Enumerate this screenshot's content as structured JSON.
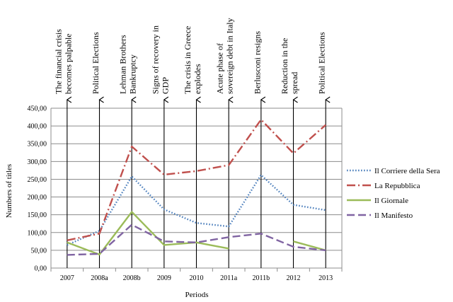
{
  "chart_data": {
    "type": "line",
    "title": "",
    "xlabel": "Periods",
    "ylabel": "Numbers of titles",
    "ylim": [
      0,
      450
    ],
    "ytick_step": 50,
    "ytick_labels": [
      "0,00",
      "50,00",
      "100,00",
      "150,00",
      "200,00",
      "250,00",
      "300,00",
      "350,00",
      "400,00",
      "450,00"
    ],
    "categories": [
      "2007",
      "2008a",
      "2008b",
      "2009",
      "2010",
      "2011a",
      "2011b",
      "2012",
      "2013"
    ],
    "series": [
      {
        "name": "Il Corriere della Sera",
        "color": "#4f81bd",
        "dash": "dotted",
        "values": [
          65,
          105,
          258,
          165,
          127,
          117,
          262,
          178,
          163
        ]
      },
      {
        "name": "La Repubblica",
        "color": "#c0504d",
        "dash": "dashdot",
        "values": [
          78,
          97,
          342,
          263,
          273,
          290,
          418,
          323,
          403
        ]
      },
      {
        "name": "Il Giornale",
        "color": "#9bbb59",
        "dash": "solid",
        "values": [
          72,
          38,
          158,
          65,
          72,
          55,
          null,
          75,
          50
        ]
      },
      {
        "name": "Il Manifesto",
        "color": "#8064a2",
        "dash": "dashed",
        "values": [
          37,
          40,
          122,
          75,
          72,
          87,
          97,
          60,
          50
        ]
      }
    ],
    "annotations": [
      {
        "category": "2007",
        "text": "The financial crisis becomes palpable",
        "lines": [
          "The financial crisis",
          "becomes palpable"
        ]
      },
      {
        "category": "2008a",
        "text": "Political Elections",
        "lines": [
          "Political Elections"
        ]
      },
      {
        "category": "2008b",
        "text": "Lehman Brothers Bankruptcy",
        "lines": [
          "Lehman Brothers",
          "Bankruptcy"
        ]
      },
      {
        "category": "2009",
        "text": "Signs of recovery in GDP",
        "lines": [
          "Signs of recovery in",
          "GDP"
        ]
      },
      {
        "category": "2010",
        "text": "The crisis in Greece explodes",
        "lines": [
          "The crisis in Greece",
          "explodes"
        ]
      },
      {
        "category": "2011a",
        "text": "Acute phase of sovereign debt in Italy",
        "lines": [
          "Acute phase of",
          "sovereign debt in Italy"
        ]
      },
      {
        "category": "2011b",
        "text": "Berlusconi resigns",
        "lines": [
          "Berlusconi resigns"
        ]
      },
      {
        "category": "2012",
        "text": "Reduction in the spread",
        "lines": [
          "Reduction in the",
          "spread"
        ]
      },
      {
        "category": "2013",
        "text": "Political Elections",
        "lines": [
          "Political Elections"
        ]
      }
    ],
    "legend_position": "right",
    "grid": true
  }
}
